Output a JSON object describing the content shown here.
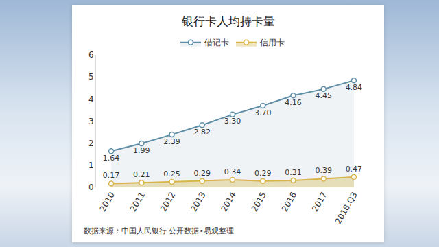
{
  "chart_data": {
    "type": "line",
    "title": "银行卡人均持卡量",
    "categories": [
      "2010",
      "2011",
      "2012",
      "2013",
      "2014",
      "2015",
      "2016",
      "2017",
      "2018.Q3"
    ],
    "series": [
      {
        "name": "借记卡",
        "color": "#5e8ea6",
        "marker": "circle",
        "values": [
          1.64,
          1.99,
          2.39,
          2.82,
          3.3,
          3.7,
          4.16,
          4.45,
          4.84
        ],
        "value_labels": [
          "1.64",
          "1.99",
          "2.39",
          "2.82",
          "3.30",
          "3.70",
          "4.16",
          "4.45",
          "4.84"
        ]
      },
      {
        "name": "信用卡",
        "color": "#d8b449",
        "marker": "circle",
        "values": [
          0.17,
          0.21,
          0.25,
          0.29,
          0.34,
          0.29,
          0.31,
          0.39,
          0.47
        ],
        "value_labels": [
          "0.17",
          "0.21",
          "0.25",
          "0.29",
          "0.34",
          "0.29",
          "0.31",
          "0.39",
          "0.47"
        ]
      }
    ],
    "ylim": [
      0,
      6
    ],
    "yticks": [
      0,
      1,
      2,
      3,
      4,
      5,
      6
    ],
    "grid": false,
    "legend": "top",
    "data_labels": true,
    "source": "数据来源：中国人民银行 公开数据•易观整理"
  }
}
